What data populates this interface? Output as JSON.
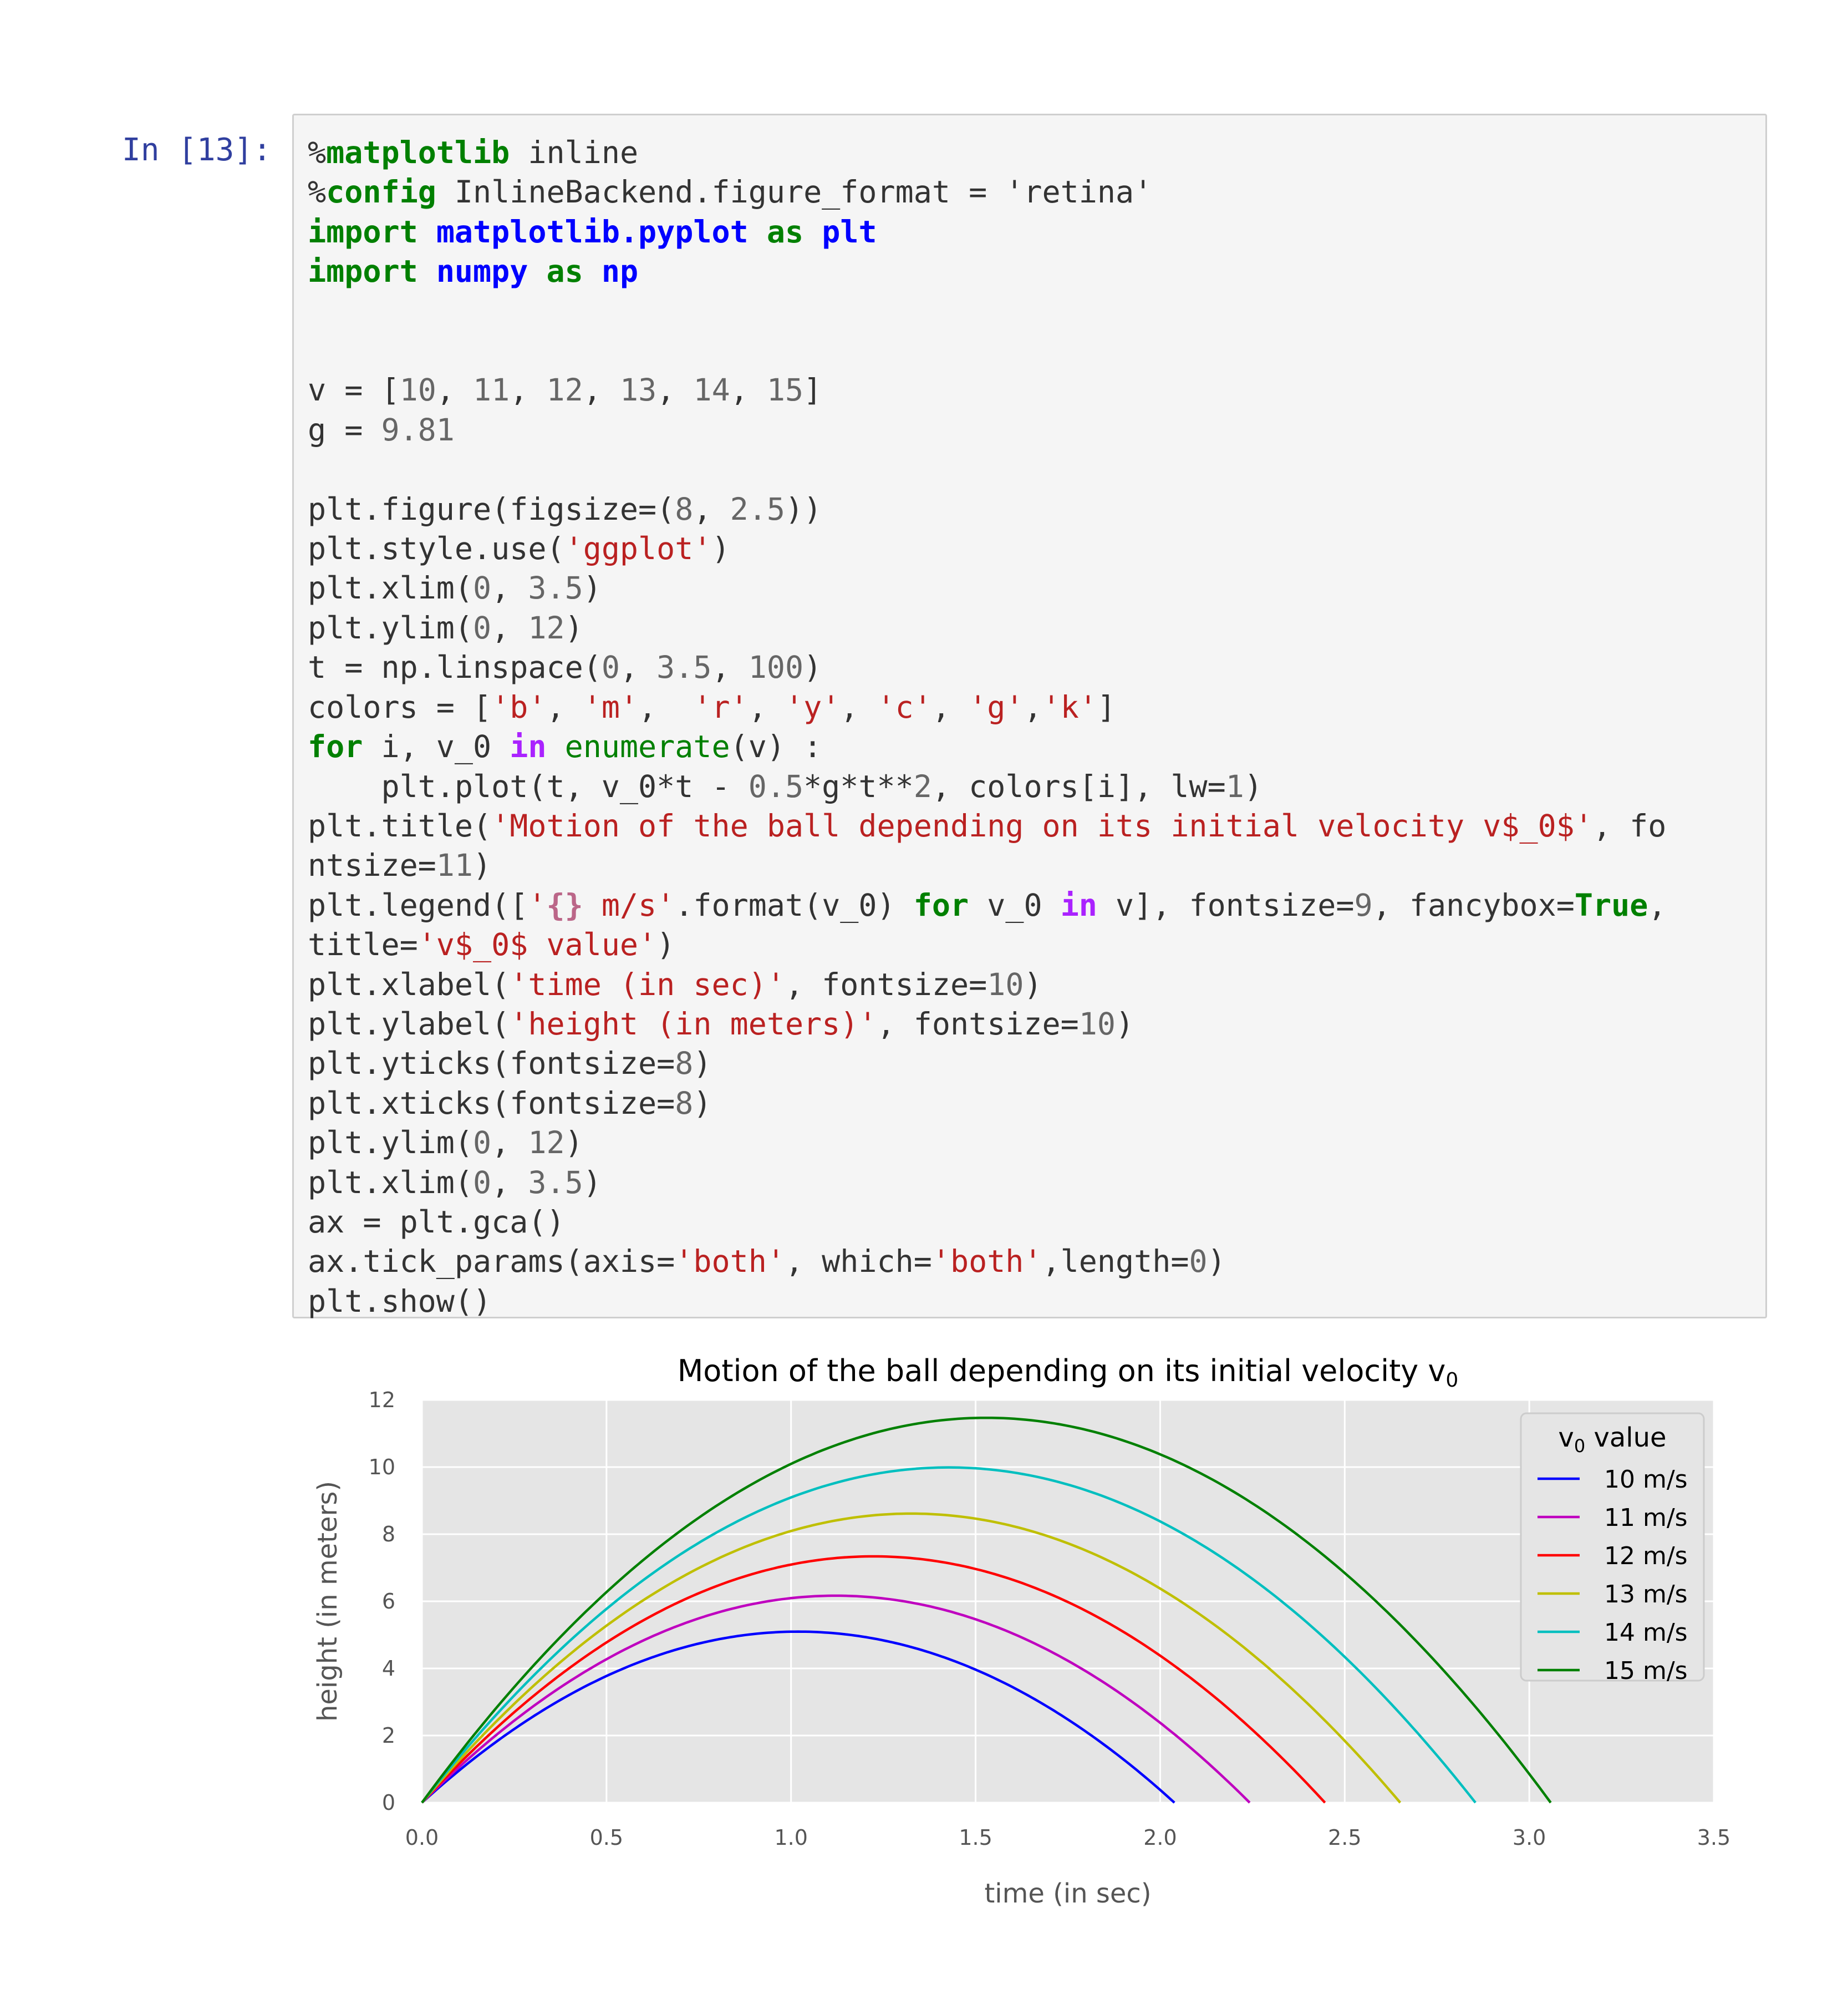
{
  "cell": {
    "prompt": "In [13]:",
    "code_lines": [
      [
        [
          "p",
          "%"
        ],
        [
          "k",
          "matplotlib"
        ],
        [
          "t",
          " inline"
        ]
      ],
      [
        [
          "p",
          "%"
        ],
        [
          "k",
          "config"
        ],
        [
          "t",
          " InlineBackend.figure_format = 'retina'"
        ]
      ],
      [
        [
          "k",
          "import"
        ],
        [
          "t",
          " "
        ],
        [
          "nm",
          "matplotlib.pyplot"
        ],
        [
          "t",
          " "
        ],
        [
          "k",
          "as"
        ],
        [
          "t",
          " "
        ],
        [
          "nm",
          "plt"
        ]
      ],
      [
        [
          "k",
          "import"
        ],
        [
          "t",
          " "
        ],
        [
          "nm",
          "numpy"
        ],
        [
          "t",
          " "
        ],
        [
          "k",
          "as"
        ],
        [
          "t",
          " "
        ],
        [
          "nm",
          "np"
        ]
      ],
      [],
      [],
      [
        [
          "t",
          "v = ["
        ],
        [
          "num",
          "10"
        ],
        [
          "t",
          ", "
        ],
        [
          "num",
          "11"
        ],
        [
          "t",
          ", "
        ],
        [
          "num",
          "12"
        ],
        [
          "t",
          ", "
        ],
        [
          "num",
          "13"
        ],
        [
          "t",
          ", "
        ],
        [
          "num",
          "14"
        ],
        [
          "t",
          ", "
        ],
        [
          "num",
          "15"
        ],
        [
          "t",
          "]"
        ]
      ],
      [
        [
          "t",
          "g = "
        ],
        [
          "num",
          "9.81"
        ]
      ],
      [],
      [
        [
          "t",
          "plt.figure(figsize=("
        ],
        [
          "num",
          "8"
        ],
        [
          "t",
          ", "
        ],
        [
          "num",
          "2.5"
        ],
        [
          "t",
          "))"
        ]
      ],
      [
        [
          "t",
          "plt.style.use("
        ],
        [
          "s",
          "'ggplot'"
        ],
        [
          "t",
          ")"
        ]
      ],
      [
        [
          "t",
          "plt.xlim("
        ],
        [
          "num",
          "0"
        ],
        [
          "t",
          ", "
        ],
        [
          "num",
          "3.5"
        ],
        [
          "t",
          ")"
        ]
      ],
      [
        [
          "t",
          "plt.ylim("
        ],
        [
          "num",
          "0"
        ],
        [
          "t",
          ", "
        ],
        [
          "num",
          "12"
        ],
        [
          "t",
          ")"
        ]
      ],
      [
        [
          "t",
          "t = np.linspace("
        ],
        [
          "num",
          "0"
        ],
        [
          "t",
          ", "
        ],
        [
          "num",
          "3.5"
        ],
        [
          "t",
          ", "
        ],
        [
          "num",
          "100"
        ],
        [
          "t",
          ")"
        ]
      ],
      [
        [
          "t",
          "colors = ["
        ],
        [
          "s",
          "'b'"
        ],
        [
          "t",
          ", "
        ],
        [
          "s",
          "'m'"
        ],
        [
          "t",
          ",  "
        ],
        [
          "s",
          "'r'"
        ],
        [
          "t",
          ", "
        ],
        [
          "s",
          "'y'"
        ],
        [
          "t",
          ", "
        ],
        [
          "s",
          "'c'"
        ],
        [
          "t",
          ", "
        ],
        [
          "s",
          "'g'"
        ],
        [
          "t",
          ","
        ],
        [
          "s",
          "'k'"
        ],
        [
          "t",
          "]"
        ]
      ],
      [
        [
          "k",
          "for"
        ],
        [
          "t",
          " i, v_0 "
        ],
        [
          "ow",
          "in"
        ],
        [
          "t",
          " "
        ],
        [
          "bi",
          "enumerate"
        ],
        [
          "t",
          "(v) :"
        ]
      ],
      [
        [
          "t",
          "    plt.plot(t, v_0*t - "
        ],
        [
          "num",
          "0.5"
        ],
        [
          "t",
          "*g*t**"
        ],
        [
          "num",
          "2"
        ],
        [
          "t",
          ", colors[i], lw="
        ],
        [
          "num",
          "1"
        ],
        [
          "t",
          ")"
        ]
      ],
      [
        [
          "t",
          "plt.title("
        ],
        [
          "s",
          "'Motion of the ball depending on its initial velocity v$_0$'"
        ],
        [
          "t",
          ", fo"
        ]
      ],
      [
        [
          "t",
          "ntsize="
        ],
        [
          "num",
          "11"
        ],
        [
          "t",
          ")"
        ]
      ],
      [
        [
          "t",
          "plt.legend(["
        ],
        [
          "s",
          "'"
        ],
        [
          "si",
          "{}"
        ],
        [
          "s",
          " m/s'"
        ],
        [
          "t",
          ".format(v_0) "
        ],
        [
          "k",
          "for"
        ],
        [
          "t",
          " v_0 "
        ],
        [
          "ow",
          "in"
        ],
        [
          "t",
          " v], fontsize="
        ],
        [
          "num",
          "9"
        ],
        [
          "t",
          ", fancybox="
        ],
        [
          "k",
          "True"
        ],
        [
          "t",
          ","
        ]
      ],
      [
        [
          "t",
          "title="
        ],
        [
          "s",
          "'v$_0$ value'"
        ],
        [
          "t",
          ")"
        ]
      ],
      [
        [
          "t",
          "plt.xlabel("
        ],
        [
          "s",
          "'time (in sec)'"
        ],
        [
          "t",
          ", fontsize="
        ],
        [
          "num",
          "10"
        ],
        [
          "t",
          ")"
        ]
      ],
      [
        [
          "t",
          "plt.ylabel("
        ],
        [
          "s",
          "'height (in meters)'"
        ],
        [
          "t",
          ", fontsize="
        ],
        [
          "num",
          "10"
        ],
        [
          "t",
          ")"
        ]
      ],
      [
        [
          "t",
          "plt.yticks(fontsize="
        ],
        [
          "num",
          "8"
        ],
        [
          "t",
          ")"
        ]
      ],
      [
        [
          "t",
          "plt.xticks(fontsize="
        ],
        [
          "num",
          "8"
        ],
        [
          "t",
          ")"
        ]
      ],
      [
        [
          "t",
          "plt.ylim("
        ],
        [
          "num",
          "0"
        ],
        [
          "t",
          ", "
        ],
        [
          "num",
          "12"
        ],
        [
          "t",
          ")"
        ]
      ],
      [
        [
          "t",
          "plt.xlim("
        ],
        [
          "num",
          "0"
        ],
        [
          "t",
          ", "
        ],
        [
          "num",
          "3.5"
        ],
        [
          "t",
          ")"
        ]
      ],
      [
        [
          "t",
          "ax = plt.gca()"
        ]
      ],
      [
        [
          "t",
          "ax.tick_params(axis="
        ],
        [
          "s",
          "'both'"
        ],
        [
          "t",
          ", which="
        ],
        [
          "s",
          "'both'"
        ],
        [
          "t",
          ",length="
        ],
        [
          "num",
          "0"
        ],
        [
          "t",
          ")"
        ]
      ],
      [
        [
          "t",
          "plt.show()"
        ]
      ]
    ]
  },
  "chart_data": {
    "type": "line",
    "title": "Motion of the ball depending on its initial velocity v",
    "title_subscript": "0",
    "xlabel": "time (in sec)",
    "ylabel": "height (in meters)",
    "xlim": [
      0,
      3.5
    ],
    "ylim": [
      0,
      12
    ],
    "xticks": [
      "0.0",
      "0.5",
      "1.0",
      "1.5",
      "2.0",
      "2.5",
      "3.0",
      "3.5"
    ],
    "yticks": [
      "0",
      "2",
      "4",
      "6",
      "8",
      "10",
      "12"
    ],
    "grid": true,
    "legend_position": "top-right",
    "legend_title": "v",
    "legend_title_subscript": "0",
    "legend_title_suffix": " value",
    "g": 9.81,
    "series": [
      {
        "name": "10 m/s",
        "v0": 10,
        "color": "#0000ff"
      },
      {
        "name": "11 m/s",
        "v0": 11,
        "color": "#bf00bf"
      },
      {
        "name": "12 m/s",
        "v0": 12,
        "color": "#ff0000"
      },
      {
        "name": "13 m/s",
        "v0": 13,
        "color": "#bfbf00"
      },
      {
        "name": "14 m/s",
        "v0": 14,
        "color": "#00bfbf"
      },
      {
        "name": "15 m/s",
        "v0": 15,
        "color": "#008000"
      }
    ],
    "background": "#e5e5e5"
  }
}
